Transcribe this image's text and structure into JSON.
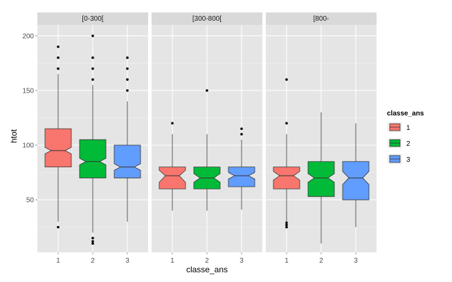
{
  "chart_data": {
    "type": "box",
    "notched": true,
    "facet_variable": "facet",
    "xlabel": "classe_ans",
    "ylabel": "htot",
    "ylim": [
      2,
      210
    ],
    "yticks": [
      50,
      100,
      150,
      200
    ],
    "categories": [
      "1",
      "2",
      "3"
    ],
    "grid": true,
    "legend": {
      "title": "classe_ans",
      "position": "right",
      "entries": [
        {
          "label": "1",
          "color": "#f8766d"
        },
        {
          "label": "2",
          "color": "#00ba38"
        },
        {
          "label": "3",
          "color": "#619cff"
        }
      ]
    },
    "facets": [
      {
        "label": "[0-300[",
        "boxes": [
          {
            "category": "1",
            "whisker_low": 30,
            "q1": 80,
            "median": 95,
            "q3": 115,
            "whisker_high": 165,
            "notch_low": 92,
            "notch_high": 98,
            "outliers": [
              25,
              170,
              180,
              190
            ]
          },
          {
            "category": "2",
            "whisker_low": 20,
            "q1": 70,
            "median": 85,
            "q3": 105,
            "whisker_high": 155,
            "notch_low": 82,
            "notch_high": 88,
            "outliers": [
              10,
              12,
              15,
              160,
              170,
              180,
              200
            ]
          },
          {
            "category": "3",
            "whisker_low": 30,
            "q1": 70,
            "median": 80,
            "q3": 100,
            "whisker_high": 140,
            "notch_low": 77,
            "notch_high": 83,
            "outliers": [
              150,
              160,
              170,
              180
            ]
          }
        ]
      },
      {
        "label": "[300-800[",
        "boxes": [
          {
            "category": "1",
            "whisker_low": 40,
            "q1": 60,
            "median": 72,
            "q3": 80,
            "whisker_high": 110,
            "notch_low": 66,
            "notch_high": 77,
            "outliers": [
              120
            ]
          },
          {
            "category": "2",
            "whisker_low": 40,
            "q1": 60,
            "median": 70,
            "q3": 80,
            "whisker_high": 110,
            "notch_low": 66,
            "notch_high": 74,
            "outliers": [
              150
            ]
          },
          {
            "category": "3",
            "whisker_low": 41,
            "q1": 62,
            "median": 72,
            "q3": 80,
            "whisker_high": 105,
            "notch_low": 69,
            "notch_high": 75,
            "outliers": [
              110,
              115
            ]
          }
        ]
      },
      {
        "label": "[800-",
        "boxes": [
          {
            "category": "1",
            "whisker_low": 30,
            "q1": 60,
            "median": 72,
            "q3": 80,
            "whisker_high": 110,
            "notch_low": 68,
            "notch_high": 76,
            "outliers": [
              25,
              27,
              29,
              120,
              160
            ]
          },
          {
            "category": "2",
            "whisker_low": 10,
            "q1": 53,
            "median": 70,
            "q3": 85,
            "whisker_high": 130,
            "notch_low": 66,
            "notch_high": 74,
            "outliers": []
          },
          {
            "category": "3",
            "whisker_low": 25,
            "q1": 50,
            "median": 70,
            "q3": 85,
            "whisker_high": 120,
            "notch_low": 64,
            "notch_high": 76,
            "outliers": []
          }
        ]
      }
    ]
  }
}
